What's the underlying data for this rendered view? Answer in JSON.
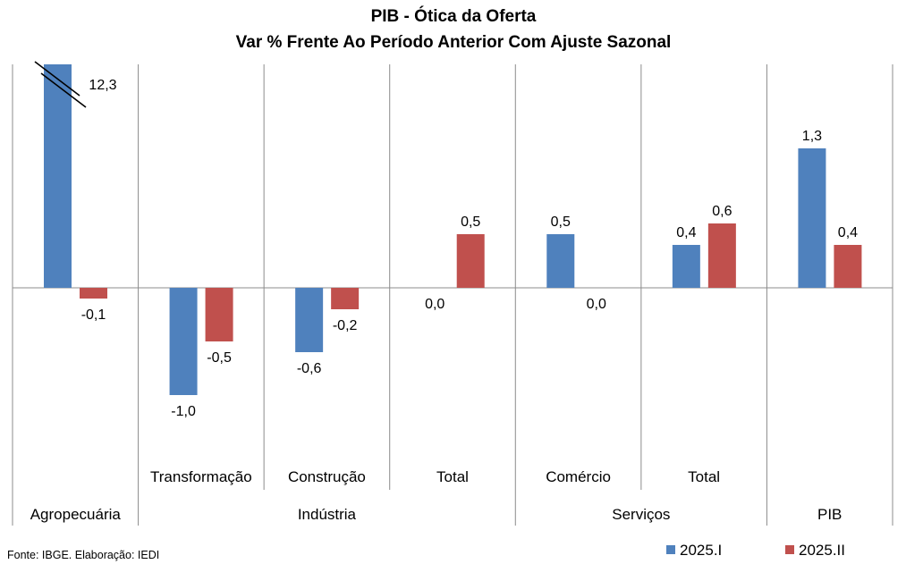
{
  "chart_data": {
    "type": "bar",
    "title": "PIB - Ótica da Oferta",
    "subtitle": "Var % Frente Ao Período Anterior Com Ajuste Sazonal",
    "categories": [
      "Agropecuária",
      "Transformação",
      "Construção",
      "Total",
      "Comércio",
      "Total",
      "PIB"
    ],
    "groups": [
      "Agropecuária",
      "Indústria",
      "Serviços",
      "PIB"
    ],
    "series": [
      {
        "name": "2025.I",
        "color": "#4F81BD",
        "values": [
          12.3,
          -1.0,
          -0.6,
          0.0,
          0.5,
          0.4,
          1.3
        ],
        "labels": [
          "12,3",
          "-1,0",
          "-0,6",
          "0,0",
          "0,5",
          "0,4",
          "1,3"
        ]
      },
      {
        "name": "2025.II",
        "color": "#C0504D",
        "values": [
          -0.1,
          -0.5,
          -0.2,
          0.5,
          0.0,
          0.6,
          0.4
        ],
        "labels": [
          "-0,1",
          "-0,5",
          "-0,2",
          "0,5",
          "0,0",
          "0,6",
          "0,4"
        ]
      }
    ],
    "axis_break": "first bar truncated",
    "grid": false,
    "legend_position": "bottom-right"
  },
  "source": "Fonte: IBGE. Elaboração: IEDI"
}
